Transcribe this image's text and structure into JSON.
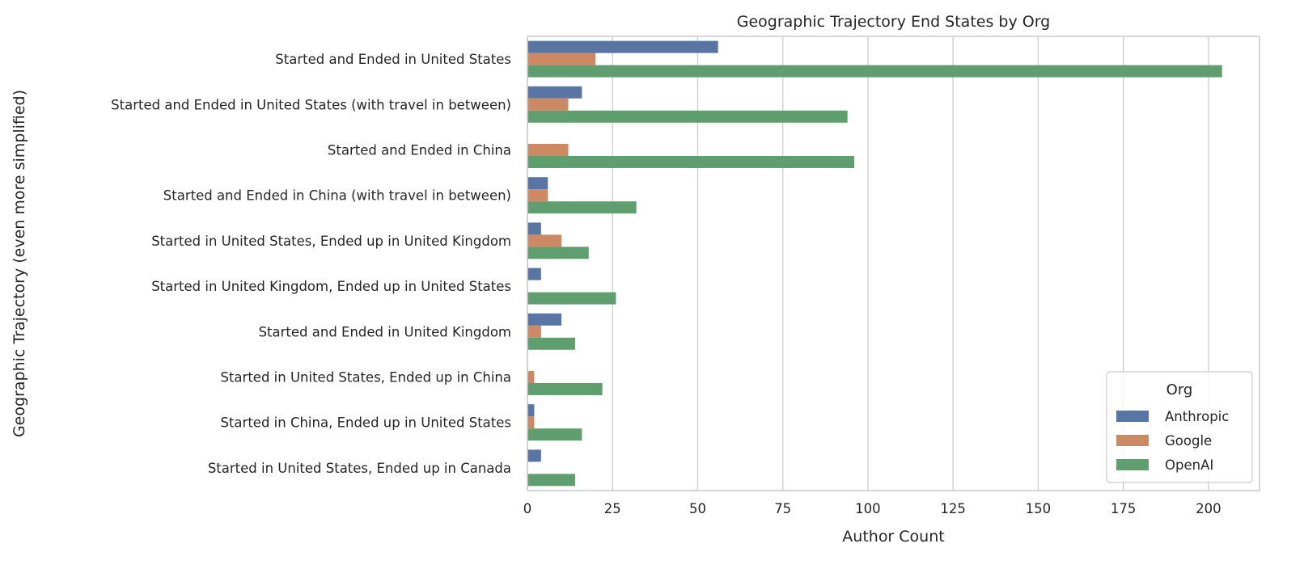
{
  "chart_data": {
    "type": "bar",
    "orientation": "horizontal",
    "title": "Geographic Trajectory End States by Org",
    "xlabel": "Author Count",
    "ylabel": "Geographic Trajectory (even more simplified)",
    "xlim": [
      0,
      215
    ],
    "xticks": [
      0,
      25,
      50,
      75,
      100,
      125,
      150,
      175,
      200
    ],
    "grid": "vertical",
    "legend": {
      "title": "Org",
      "placement": "bottom-right"
    },
    "categories": [
      "Started and Ended in United States",
      "Started and Ended in United States (with travel in between)",
      "Started and Ended in China",
      "Started and Ended in China (with travel in between)",
      "Started in United States, Ended up in United Kingdom",
      "Started in United Kingdom, Ended up in United States",
      "Started and Ended in United Kingdom",
      "Started in United States, Ended up in China",
      "Started in China, Ended up in United States",
      "Started in United States, Ended up in Canada"
    ],
    "series": [
      {
        "name": "Anthropic",
        "color": "#5975a4",
        "values": [
          56,
          16,
          0,
          6,
          4,
          4,
          10,
          0,
          2,
          4
        ]
      },
      {
        "name": "Google",
        "color": "#cc8963",
        "values": [
          20,
          12,
          12,
          6,
          10,
          0,
          4,
          2,
          2,
          0
        ]
      },
      {
        "name": "OpenAI",
        "color": "#5f9e6e",
        "values": [
          204,
          94,
          96,
          32,
          18,
          26,
          14,
          22,
          16,
          14
        ]
      }
    ]
  }
}
